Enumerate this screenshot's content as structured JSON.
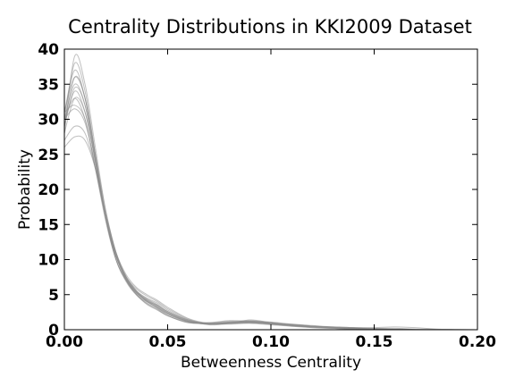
{
  "chart_data": {
    "type": "line",
    "title": "Centrality Distributions in KKI2009 Dataset",
    "xlabel": "Betweenness Centrality",
    "ylabel": "Probability",
    "xlim": [
      0.0,
      0.2
    ],
    "ylim": [
      0,
      40
    ],
    "xticks": [
      0.0,
      0.05,
      0.1,
      0.15,
      0.2
    ],
    "xtick_labels": [
      "0.00",
      "0.05",
      "0.10",
      "0.15",
      "0.20"
    ],
    "yticks": [
      0,
      5,
      10,
      15,
      20,
      25,
      30,
      35,
      40
    ],
    "ytick_labels": [
      "0",
      "5",
      "10",
      "15",
      "20",
      "25",
      "30",
      "35",
      "40"
    ],
    "grid": false,
    "line_color": "#8c8c8c",
    "series": [
      {
        "x": [
          0.0,
          0.005,
          0.01,
          0.015,
          0.02,
          0.025,
          0.03,
          0.035,
          0.04,
          0.045,
          0.05,
          0.06,
          0.07,
          0.08,
          0.09,
          0.1,
          0.11,
          0.12,
          0.13,
          0.14,
          0.15,
          0.16,
          0.17,
          0.18,
          0.19,
          0.2
        ],
        "values": [
          28,
          39,
          35,
          26,
          17,
          11,
          7.5,
          5.5,
          4,
          3.2,
          2.2,
          1.2,
          0.8,
          1.0,
          1.3,
          0.9,
          0.6,
          0.4,
          0.2,
          0.1,
          0.05,
          0.02,
          0.0,
          0.0,
          0.0,
          0.0
        ]
      },
      {
        "x": [
          0.0,
          0.005,
          0.01,
          0.015,
          0.02,
          0.025,
          0.03,
          0.035,
          0.04,
          0.045,
          0.05,
          0.06,
          0.07,
          0.08,
          0.09,
          0.1,
          0.11,
          0.12,
          0.13,
          0.14,
          0.15,
          0.16,
          0.17,
          0.18,
          0.19,
          0.2
        ],
        "values": [
          30,
          38,
          34,
          25,
          16,
          10,
          7,
          5,
          3.6,
          2.8,
          2.0,
          1.0,
          0.9,
          1.2,
          1.1,
          0.8,
          0.5,
          0.3,
          0.2,
          0.1,
          0.05,
          0.0,
          0.0,
          0.0,
          0.0,
          0.0
        ]
      },
      {
        "x": [
          0.0,
          0.005,
          0.01,
          0.015,
          0.02,
          0.025,
          0.03,
          0.035,
          0.04,
          0.045,
          0.05,
          0.06,
          0.07,
          0.08,
          0.09,
          0.1,
          0.11,
          0.12,
          0.13,
          0.14,
          0.15,
          0.16,
          0.17,
          0.18,
          0.19,
          0.2
        ],
        "values": [
          31,
          37,
          33,
          25,
          17,
          11,
          7,
          5,
          4,
          3.5,
          2.5,
          1.3,
          0.7,
          0.9,
          1.4,
          1.0,
          0.6,
          0.4,
          0.3,
          0.1,
          0.05,
          0.0,
          0.0,
          0.0,
          0.0,
          0.0
        ]
      },
      {
        "x": [
          0.0,
          0.005,
          0.01,
          0.015,
          0.02,
          0.025,
          0.03,
          0.035,
          0.04,
          0.045,
          0.05,
          0.06,
          0.07,
          0.08,
          0.09,
          0.1,
          0.11,
          0.12,
          0.13,
          0.14,
          0.15,
          0.16,
          0.17,
          0.18,
          0.19,
          0.2
        ],
        "values": [
          29,
          36,
          33,
          25,
          16,
          10,
          7,
          5.2,
          4.2,
          3.4,
          2.4,
          1.2,
          0.8,
          1.1,
          1.0,
          0.9,
          0.7,
          0.5,
          0.3,
          0.2,
          0.1,
          0.05,
          0.0,
          0.0,
          0.0,
          0.0
        ]
      },
      {
        "x": [
          0.0,
          0.005,
          0.01,
          0.015,
          0.02,
          0.025,
          0.03,
          0.035,
          0.04,
          0.045,
          0.05,
          0.06,
          0.07,
          0.08,
          0.09,
          0.1,
          0.11,
          0.12,
          0.13,
          0.14,
          0.15,
          0.16,
          0.17,
          0.18,
          0.19,
          0.2
        ],
        "values": [
          30,
          35,
          32,
          24,
          16,
          10.5,
          7.2,
          5.3,
          4.1,
          3.1,
          2.2,
          1.1,
          0.9,
          1.0,
          1.2,
          1.0,
          0.6,
          0.3,
          0.2,
          0.1,
          0.05,
          0.0,
          0.0,
          0.0,
          0.0,
          0.0
        ]
      },
      {
        "x": [
          0.0,
          0.005,
          0.01,
          0.015,
          0.02,
          0.025,
          0.03,
          0.035,
          0.04,
          0.045,
          0.05,
          0.06,
          0.07,
          0.08,
          0.09,
          0.1,
          0.11,
          0.12,
          0.13,
          0.14,
          0.15,
          0.16,
          0.17,
          0.18,
          0.19,
          0.2
        ],
        "values": [
          29,
          34,
          31,
          24,
          16,
          10.5,
          7.5,
          5.8,
          4.8,
          4.0,
          3.0,
          1.5,
          0.8,
          0.9,
          1.0,
          0.8,
          0.6,
          0.4,
          0.3,
          0.2,
          0.1,
          0.05,
          0.0,
          0.0,
          0.0,
          0.0
        ]
      },
      {
        "x": [
          0.0,
          0.005,
          0.01,
          0.015,
          0.02,
          0.025,
          0.03,
          0.035,
          0.04,
          0.045,
          0.05,
          0.06,
          0.07,
          0.08,
          0.09,
          0.1,
          0.11,
          0.12,
          0.13,
          0.14,
          0.15,
          0.16,
          0.17,
          0.18,
          0.19,
          0.2
        ],
        "values": [
          28,
          33,
          31,
          24,
          16,
          11,
          7.8,
          6,
          5,
          4.2,
          3.2,
          1.6,
          0.9,
          0.8,
          0.9,
          0.7,
          0.5,
          0.4,
          0.3,
          0.2,
          0.1,
          0.05,
          0.0,
          0.0,
          0.0,
          0.0
        ]
      },
      {
        "x": [
          0.0,
          0.005,
          0.01,
          0.015,
          0.02,
          0.025,
          0.03,
          0.035,
          0.04,
          0.045,
          0.05,
          0.06,
          0.07,
          0.08,
          0.09,
          0.1,
          0.11,
          0.12,
          0.13,
          0.14,
          0.15,
          0.16,
          0.17,
          0.18,
          0.19,
          0.2
        ],
        "values": [
          30,
          33,
          30,
          23,
          15.5,
          10,
          7,
          5,
          3.8,
          3.0,
          2.0,
          1.0,
          1.0,
          1.3,
          1.2,
          1.0,
          0.7,
          0.5,
          0.3,
          0.2,
          0.1,
          0.05,
          0.0,
          0.0,
          0.0,
          0.0
        ]
      },
      {
        "x": [
          0.0,
          0.005,
          0.01,
          0.015,
          0.02,
          0.025,
          0.03,
          0.035,
          0.04,
          0.045,
          0.05,
          0.06,
          0.07,
          0.08,
          0.09,
          0.1,
          0.11,
          0.12,
          0.13,
          0.14,
          0.15,
          0.16,
          0.17,
          0.18,
          0.19,
          0.2
        ],
        "values": [
          31,
          32,
          30,
          23,
          16,
          10.5,
          7.2,
          5.2,
          4.0,
          3.2,
          2.3,
          1.2,
          0.9,
          1.0,
          1.1,
          0.9,
          0.8,
          0.6,
          0.4,
          0.3,
          0.2,
          0.1,
          0.05,
          0.0,
          0.0,
          0.0
        ]
      },
      {
        "x": [
          0.0,
          0.005,
          0.01,
          0.015,
          0.02,
          0.025,
          0.03,
          0.035,
          0.04,
          0.045,
          0.05,
          0.06,
          0.07,
          0.08,
          0.09,
          0.1,
          0.11,
          0.12,
          0.13,
          0.14,
          0.15,
          0.16,
          0.17,
          0.18,
          0.19,
          0.2
        ],
        "values": [
          26,
          27.5,
          27,
          23,
          16.5,
          11,
          7.5,
          5.5,
          4.5,
          3.8,
          2.8,
          1.4,
          0.8,
          0.9,
          1.0,
          0.8,
          0.6,
          0.5,
          0.4,
          0.3,
          0.3,
          0.4,
          0.3,
          0.1,
          0.05,
          0.0
        ]
      },
      {
        "x": [
          0.0,
          0.005,
          0.01,
          0.015,
          0.02,
          0.025,
          0.03,
          0.035,
          0.04,
          0.045,
          0.05,
          0.06,
          0.07,
          0.08,
          0.09,
          0.1,
          0.11,
          0.12,
          0.13,
          0.14,
          0.15,
          0.16,
          0.17,
          0.18,
          0.19,
          0.2
        ],
        "values": [
          27,
          29,
          28,
          23,
          16,
          10.5,
          7.2,
          5.3,
          4.3,
          3.5,
          2.6,
          1.3,
          0.9,
          1.0,
          1.1,
          0.9,
          0.7,
          0.5,
          0.4,
          0.3,
          0.2,
          0.2,
          0.1,
          0.05,
          0.0,
          0.0
        ]
      },
      {
        "x": [
          0.0,
          0.005,
          0.01,
          0.015,
          0.02,
          0.025,
          0.03,
          0.035,
          0.04,
          0.045,
          0.05,
          0.06,
          0.07,
          0.08,
          0.09,
          0.1,
          0.11,
          0.12,
          0.13,
          0.14,
          0.15,
          0.16,
          0.17,
          0.18,
          0.19,
          0.2
        ],
        "values": [
          31,
          36,
          33,
          24.5,
          16,
          10,
          6.8,
          4.9,
          3.7,
          2.9,
          2.0,
          1.1,
          0.8,
          1.0,
          1.2,
          1.1,
          0.8,
          0.5,
          0.3,
          0.2,
          0.1,
          0.05,
          0.0,
          0.0,
          0.0,
          0.0
        ]
      },
      {
        "x": [
          0.0,
          0.005,
          0.01,
          0.015,
          0.02,
          0.025,
          0.03,
          0.035,
          0.04,
          0.045,
          0.05,
          0.06,
          0.07,
          0.08,
          0.09,
          0.1,
          0.11,
          0.12,
          0.13,
          0.14,
          0.15,
          0.16,
          0.17,
          0.18,
          0.19,
          0.2
        ],
        "values": [
          29,
          34.5,
          32,
          24.5,
          16.5,
          10.8,
          7.4,
          5.5,
          4.4,
          3.6,
          2.6,
          1.4,
          0.9,
          0.9,
          1.0,
          0.9,
          0.6,
          0.4,
          0.3,
          0.2,
          0.1,
          0.05,
          0.0,
          0.0,
          0.0,
          0.0
        ]
      },
      {
        "x": [
          0.0,
          0.005,
          0.01,
          0.015,
          0.02,
          0.025,
          0.03,
          0.035,
          0.04,
          0.045,
          0.05,
          0.06,
          0.07,
          0.08,
          0.09,
          0.1,
          0.11,
          0.12,
          0.13,
          0.14,
          0.15,
          0.16,
          0.17,
          0.18,
          0.19,
          0.2
        ],
        "values": [
          30,
          31.5,
          29.5,
          23.5,
          16.2,
          10.6,
          7.3,
          5.4,
          4.2,
          3.3,
          2.4,
          1.2,
          1.0,
          1.1,
          1.2,
          1.0,
          0.7,
          0.5,
          0.3,
          0.2,
          0.1,
          0.05,
          0.0,
          0.0,
          0.0,
          0.0
        ]
      }
    ]
  }
}
